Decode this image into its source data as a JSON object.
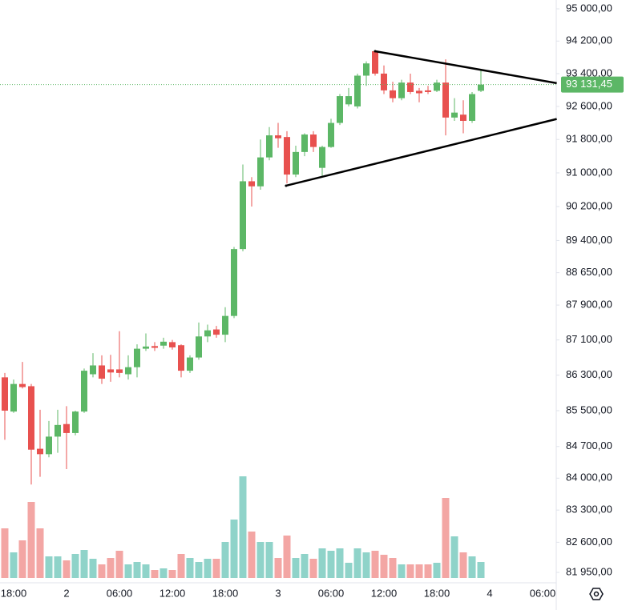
{
  "chart_data": {
    "type": "candlestick",
    "scale": "log",
    "up_color": "#5cb766",
    "down_color": "#e8514f",
    "volume_up_color": "#8fd3c9",
    "volume_down_color": "#f3a6a4",
    "categories": [
      null,
      "18:00",
      null,
      null,
      null,
      null,
      null,
      "2",
      null,
      null,
      null,
      null,
      null,
      "06:00",
      null,
      null,
      null,
      null,
      null,
      "12:00",
      null,
      null,
      null,
      null,
      null,
      "18:00",
      null,
      null,
      null,
      null,
      null,
      "3",
      null,
      null,
      null,
      null,
      null,
      "06:00",
      null,
      null,
      null,
      null,
      null,
      "12:00",
      null,
      null,
      null,
      null,
      null,
      "18:00",
      null,
      null,
      null,
      null,
      null,
      "4",
      null,
      null,
      null,
      null,
      null,
      "06:00",
      null
    ],
    "open": [
      86250,
      85480,
      86100,
      86050,
      84650,
      84530,
      84920,
      85200,
      85000,
      85480,
      86320,
      86520,
      86430,
      86430,
      86320,
      86480,
      86900,
      86960,
      86970,
      87050,
      86980,
      86400,
      86700,
      87180,
      87340,
      87220,
      87650,
      89200,
      90800,
      90680,
      91370,
      91900,
      91860,
      90960,
      91500,
      91920,
      91120,
      91620,
      92200,
      92650,
      92600,
      93350,
      93950,
      93400,
      92990,
      92800,
      93180,
      92980,
      92990,
      92980,
      93180,
      92330,
      92400,
      92250,
      92980,
      null,
      null,
      null,
      null,
      null,
      null,
      null,
      null
    ],
    "high": [
      86350,
      86200,
      86600,
      86100,
      85520,
      85270,
      85520,
      85600,
      85500,
      86450,
      86800,
      86750,
      86760,
      87300,
      86750,
      87000,
      87250,
      87050,
      87150,
      87100,
      87000,
      86750,
      87500,
      87450,
      87420,
      87850,
      89250,
      91200,
      90900,
      91800,
      92100,
      92200,
      92000,
      91650,
      91950,
      92000,
      91650,
      92300,
      92900,
      93050,
      93400,
      93700,
      93980,
      93600,
      93200,
      93250,
      93400,
      93050,
      93100,
      93250,
      93750,
      92800,
      92750,
      92950,
      93500,
      null,
      null,
      null,
      null,
      null,
      null,
      null,
      null
    ],
    "low": [
      84850,
      85450,
      86000,
      83860,
      84030,
      84460,
      84560,
      84200,
      84950,
      85450,
      86250,
      86100,
      86150,
      86250,
      86200,
      86250,
      86850,
      86850,
      86900,
      86880,
      86250,
      86350,
      86650,
      87050,
      87150,
      87050,
      87600,
      89150,
      90200,
      90600,
      91300,
      91600,
      90750,
      90900,
      91400,
      91500,
      90900,
      91600,
      92150,
      92600,
      92550,
      93100,
      93350,
      92900,
      92700,
      92750,
      92900,
      92700,
      92900,
      92950,
      91900,
      92250,
      91950,
      92200,
      92950,
      null,
      null,
      null,
      null,
      null,
      null,
      null,
      null
    ],
    "close": [
      85500,
      86100,
      86030,
      84630,
      84530,
      84920,
      85180,
      85000,
      85480,
      86400,
      86520,
      86220,
      86360,
      86350,
      86480,
      86900,
      86950,
      86920,
      87060,
      86930,
      86400,
      86700,
      87180,
      87320,
      87220,
      87650,
      89200,
      90800,
      90680,
      91370,
      91900,
      91830,
      90960,
      91500,
      91920,
      91620,
      91620,
      92200,
      92850,
      92850,
      93350,
      93650,
      93400,
      92990,
      92800,
      93180,
      92950,
      92920,
      92950,
      93180,
      92330,
      92450,
      92250,
      92900,
      93131.45,
      null,
      null,
      null,
      null,
      null,
      null,
      null,
      null
    ],
    "volume": [
      62,
      32,
      47,
      95,
      62,
      27,
      27,
      22,
      30,
      35,
      24,
      17,
      25,
      34,
      17,
      20,
      17,
      10,
      12,
      10,
      30,
      25,
      20,
      24,
      24,
      45,
      73,
      127,
      58,
      45,
      45,
      25,
      53,
      25,
      30,
      24,
      37,
      34,
      37,
      19,
      37,
      32,
      34,
      29,
      25,
      17,
      17,
      17,
      17,
      19,
      100,
      52,
      32,
      27,
      20,
      null,
      null,
      null,
      null,
      null,
      null,
      null,
      null
    ],
    "ylim": [
      81727,
      95220
    ],
    "yticks": [
      {
        "value": 95000,
        "label": "95 000,00"
      },
      {
        "value": 94200,
        "label": "94 200,00"
      },
      {
        "value": 93400,
        "label": "93 400,00"
      },
      {
        "value": 92600,
        "label": "92 600,00"
      },
      {
        "value": 91800,
        "label": "91 800,00"
      },
      {
        "value": 91000,
        "label": "91 000,00"
      },
      {
        "value": 90200,
        "label": "90 200,00"
      },
      {
        "value": 89400,
        "label": "89 400,00"
      },
      {
        "value": 88650,
        "label": "88 650,00"
      },
      {
        "value": 87900,
        "label": "87 900,00"
      },
      {
        "value": 87100,
        "label": "87 100,00"
      },
      {
        "value": 86300,
        "label": "86 300,00"
      },
      {
        "value": 85500,
        "label": "85 500,00"
      },
      {
        "value": 84700,
        "label": "84 700,00"
      },
      {
        "value": 84000,
        "label": "84 000,00"
      },
      {
        "value": 83300,
        "label": "83 300,00"
      },
      {
        "value": 82600,
        "label": "82 600,00"
      },
      {
        "value": 81950,
        "label": "81 950,00"
      }
    ],
    "last_price": {
      "value": 93131.45,
      "label": "93 131,45"
    },
    "trendlines": [
      {
        "from": [
          42,
          93950
        ],
        "to": [
          62.6,
          93166
        ]
      },
      {
        "from": [
          31.9,
          90695
        ],
        "to": [
          62.6,
          92295
        ]
      }
    ]
  }
}
